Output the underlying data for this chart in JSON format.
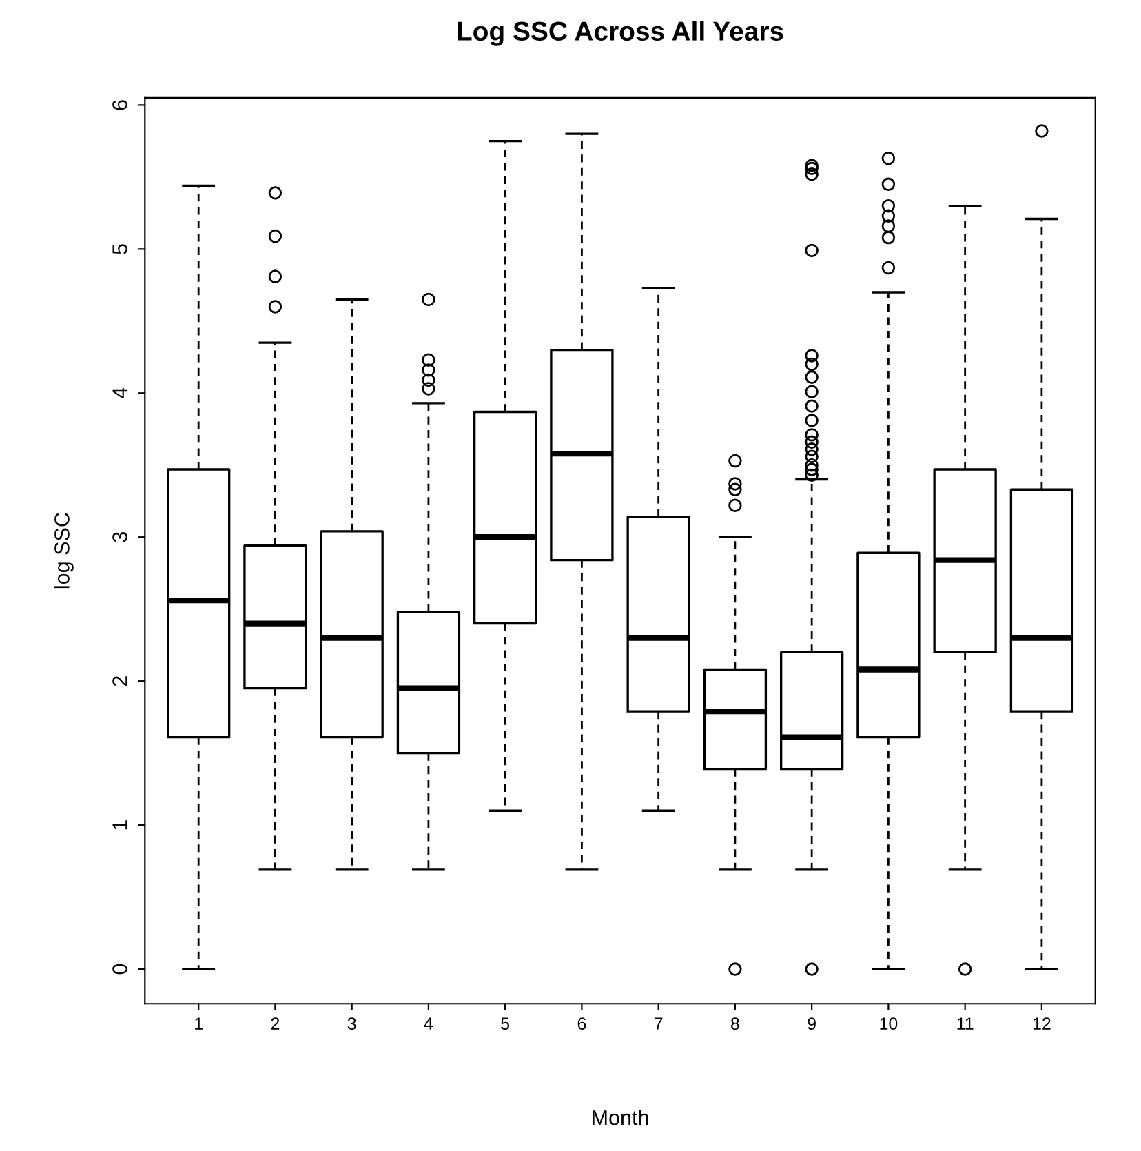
{
  "chart_data": {
    "type": "box",
    "title": "Log SSC Across All Years",
    "xlabel": "Month",
    "ylabel": "log SSC",
    "categories": [
      "1",
      "2",
      "3",
      "4",
      "5",
      "6",
      "7",
      "8",
      "9",
      "10",
      "11",
      "12"
    ],
    "ylim": [
      -0.24,
      6.05
    ],
    "yticks": [
      0,
      1,
      2,
      3,
      4,
      5,
      6
    ],
    "grid": false,
    "legend": false,
    "boxes": [
      {
        "low": 0,
        "q1": 1.61,
        "median": 2.56,
        "q3": 3.47,
        "high": 5.44
      },
      {
        "low": 0.69,
        "q1": 1.95,
        "median": 2.4,
        "q3": 2.94,
        "high": 4.35,
        "outliers": [
          4.6,
          4.81,
          5.09,
          5.39
        ]
      },
      {
        "low": 0.69,
        "q1": 1.61,
        "median": 2.3,
        "q3": 3.04,
        "high": 4.65
      },
      {
        "low": 0.69,
        "q1": 1.5,
        "median": 1.95,
        "q3": 2.48,
        "high": 3.93,
        "outliers": [
          4.03,
          4.09,
          4.16,
          4.23,
          4.65
        ]
      },
      {
        "low": 1.1,
        "q1": 2.4,
        "median": 3.0,
        "q3": 3.87,
        "high": 5.75
      },
      {
        "low": 0.69,
        "q1": 2.84,
        "median": 3.58,
        "q3": 4.3,
        "high": 5.8
      },
      {
        "low": 1.1,
        "q1": 1.79,
        "median": 2.3,
        "q3": 3.14,
        "high": 4.73
      },
      {
        "low": 0.69,
        "q1": 1.39,
        "median": 1.79,
        "q3": 2.08,
        "high": 3.0,
        "outliers": [
          0,
          3.22,
          3.33,
          3.37,
          3.53
        ]
      },
      {
        "low": 0.69,
        "q1": 1.39,
        "median": 1.61,
        "q3": 2.2,
        "high": 3.4,
        "outliers": [
          0,
          3.43,
          3.47,
          3.5,
          3.56,
          3.61,
          3.66,
          3.71,
          3.81,
          3.91,
          4.01,
          4.11,
          4.2,
          4.26,
          4.99,
          5.52,
          5.56,
          5.58
        ]
      },
      {
        "low": 0,
        "q1": 1.61,
        "median": 2.08,
        "q3": 2.89,
        "high": 4.7,
        "outliers": [
          4.87,
          5.08,
          5.16,
          5.23,
          5.3,
          5.45,
          5.63
        ]
      },
      {
        "low": 0.69,
        "q1": 2.2,
        "median": 2.84,
        "q3": 3.47,
        "high": 5.3,
        "outliers": [
          0
        ]
      },
      {
        "low": 0,
        "q1": 1.79,
        "median": 2.3,
        "q3": 3.33,
        "high": 5.21,
        "outliers": [
          5.82
        ]
      }
    ]
  }
}
